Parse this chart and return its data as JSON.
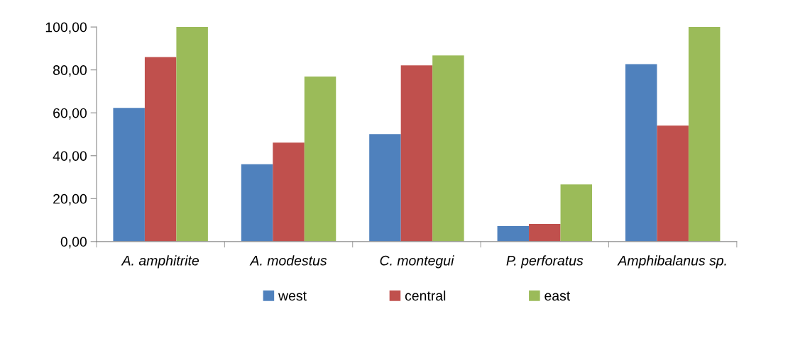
{
  "chart_data": {
    "type": "bar",
    "categories": [
      "A. amphitrite",
      "A. modestus",
      "C. montegui",
      "P. perforatus",
      "Amphibalanus sp."
    ],
    "series": [
      {
        "name": "west",
        "color": "#4f81bd",
        "values": [
          62.3,
          36.0,
          50.1,
          7.2,
          82.7
        ]
      },
      {
        "name": "central",
        "color": "#c0504d",
        "values": [
          86.0,
          46.1,
          82.1,
          8.2,
          54.0
        ]
      },
      {
        "name": "east",
        "color": "#9bbb59",
        "values": [
          100.0,
          76.9,
          86.7,
          26.6,
          100.0
        ]
      }
    ],
    "ylim": [
      0,
      100
    ],
    "yticks": [
      {
        "value": 0,
        "label": "0,00"
      },
      {
        "value": 20,
        "label": "20,00"
      },
      {
        "value": 40,
        "label": "40,00"
      },
      {
        "value": 60,
        "label": "60,00"
      },
      {
        "value": 80,
        "label": "80,00"
      },
      {
        "value": 100,
        "label": "100,00"
      }
    ],
    "grid": false,
    "legend": "bottom"
  }
}
